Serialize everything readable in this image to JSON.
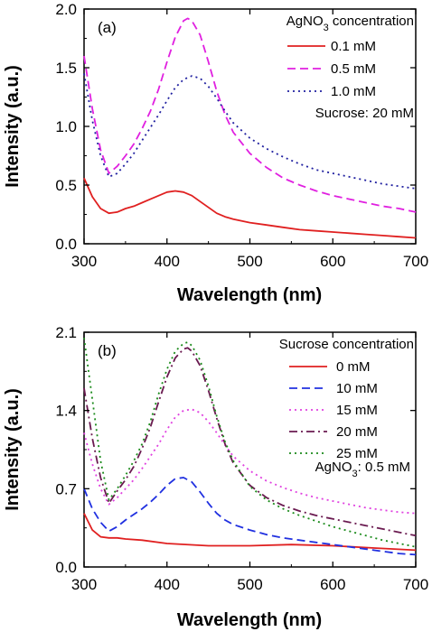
{
  "colors": {
    "red": "#e02020",
    "magenta": "#e020e0",
    "navy": "#2020a0",
    "blue": "#2030e0",
    "purple": "#6a1a50",
    "green": "#1a8a1a",
    "axis": "#000000"
  },
  "chart_data": [
    {
      "type": "line",
      "panel_label": "(a)",
      "xlabel": "Wavelength (nm)",
      "ylabel": "Intensity (a.u.)",
      "xlim": [
        300,
        700
      ],
      "ylim": [
        0,
        2.0
      ],
      "xticks": [
        "300",
        "400",
        "500",
        "600",
        "700"
      ],
      "yticks": [
        "0.0",
        "0.5",
        "1.0",
        "1.5",
        "2.0"
      ],
      "legend_title_main": "AgNO",
      "legend_title_sub": "3",
      "legend_title_rest": " concentration",
      "legend_note": "Sucrose: 20 mM",
      "legend_position": "top-right",
      "series": [
        {
          "name": "0.1 mM",
          "color": "#e02020",
          "dash": "solid",
          "x": [
            300,
            310,
            320,
            330,
            340,
            350,
            360,
            370,
            380,
            390,
            400,
            410,
            420,
            430,
            440,
            450,
            460,
            470,
            480,
            500,
            520,
            540,
            560,
            580,
            600,
            620,
            640,
            660,
            680,
            700
          ],
          "y": [
            0.56,
            0.4,
            0.3,
            0.26,
            0.27,
            0.3,
            0.32,
            0.35,
            0.38,
            0.41,
            0.44,
            0.45,
            0.44,
            0.41,
            0.36,
            0.31,
            0.26,
            0.23,
            0.21,
            0.18,
            0.16,
            0.14,
            0.12,
            0.11,
            0.1,
            0.09,
            0.08,
            0.07,
            0.06,
            0.05
          ]
        },
        {
          "name": "0.5 mM",
          "color": "#e020e0",
          "dash": "dash",
          "x": [
            300,
            310,
            320,
            330,
            340,
            350,
            360,
            370,
            380,
            390,
            400,
            410,
            420,
            425,
            430,
            440,
            450,
            460,
            470,
            480,
            500,
            520,
            540,
            560,
            580,
            600,
            620,
            640,
            660,
            680,
            700
          ],
          "y": [
            1.6,
            1.15,
            0.8,
            0.6,
            0.66,
            0.75,
            0.85,
            0.98,
            1.13,
            1.32,
            1.55,
            1.76,
            1.9,
            1.92,
            1.9,
            1.78,
            1.55,
            1.3,
            1.1,
            0.95,
            0.77,
            0.65,
            0.56,
            0.5,
            0.45,
            0.41,
            0.38,
            0.35,
            0.32,
            0.3,
            0.27
          ]
        },
        {
          "name": "1.0 mM",
          "color": "#2020a0",
          "dash": "dot",
          "x": [
            300,
            310,
            320,
            330,
            340,
            350,
            360,
            370,
            380,
            390,
            400,
            410,
            420,
            430,
            440,
            450,
            460,
            470,
            480,
            500,
            520,
            540,
            560,
            580,
            600,
            620,
            640,
            660,
            680,
            700
          ],
          "y": [
            1.45,
            1.05,
            0.75,
            0.57,
            0.6,
            0.68,
            0.77,
            0.88,
            0.99,
            1.1,
            1.22,
            1.33,
            1.4,
            1.43,
            1.41,
            1.34,
            1.24,
            1.13,
            1.03,
            0.9,
            0.81,
            0.74,
            0.68,
            0.63,
            0.6,
            0.57,
            0.54,
            0.51,
            0.49,
            0.47
          ]
        }
      ]
    },
    {
      "type": "line",
      "panel_label": "(b)",
      "xlabel": "Wavelength (nm)",
      "ylabel": "Intensity (a.u.)",
      "xlim": [
        300,
        700
      ],
      "ylim": [
        0,
        2.1
      ],
      "xticks": [
        "300",
        "400",
        "500",
        "600",
        "700"
      ],
      "yticks": [
        "0.0",
        "0.7",
        "1.4",
        "2.1"
      ],
      "legend_title": "Sucrose concentration",
      "legend_note_main": "AgNO",
      "legend_note_sub": "3",
      "legend_note_rest": ": 0.5 mM",
      "legend_position": "top-right",
      "series": [
        {
          "name": "0 mM",
          "color": "#e02020",
          "dash": "solid",
          "x": [
            300,
            310,
            320,
            330,
            340,
            350,
            370,
            400,
            450,
            500,
            550,
            600,
            650,
            700
          ],
          "y": [
            0.48,
            0.33,
            0.27,
            0.26,
            0.26,
            0.25,
            0.24,
            0.21,
            0.19,
            0.19,
            0.2,
            0.19,
            0.17,
            0.15
          ]
        },
        {
          "name": "10 mM",
          "color": "#2030e0",
          "dash": "dash",
          "x": [
            300,
            310,
            320,
            330,
            340,
            350,
            360,
            370,
            380,
            390,
            400,
            410,
            420,
            430,
            440,
            450,
            460,
            470,
            480,
            500,
            520,
            540,
            560,
            580,
            600,
            620,
            640,
            660,
            680,
            700
          ],
          "y": [
            0.7,
            0.52,
            0.4,
            0.32,
            0.36,
            0.42,
            0.47,
            0.52,
            0.58,
            0.65,
            0.73,
            0.79,
            0.8,
            0.76,
            0.67,
            0.57,
            0.48,
            0.42,
            0.38,
            0.33,
            0.29,
            0.26,
            0.24,
            0.22,
            0.2,
            0.18,
            0.16,
            0.14,
            0.12,
            0.11
          ]
        },
        {
          "name": "15 mM",
          "color": "#e040e0",
          "dash": "dot",
          "x": [
            300,
            310,
            320,
            330,
            340,
            350,
            360,
            370,
            380,
            390,
            400,
            410,
            420,
            430,
            440,
            450,
            460,
            470,
            480,
            500,
            520,
            540,
            560,
            580,
            600,
            620,
            640,
            660,
            680,
            700
          ],
          "y": [
            1.2,
            0.92,
            0.7,
            0.56,
            0.62,
            0.7,
            0.78,
            0.88,
            0.99,
            1.1,
            1.23,
            1.34,
            1.4,
            1.41,
            1.38,
            1.3,
            1.2,
            1.09,
            0.99,
            0.86,
            0.77,
            0.71,
            0.66,
            0.62,
            0.59,
            0.56,
            0.53,
            0.51,
            0.49,
            0.48
          ]
        },
        {
          "name": "20 mM",
          "color": "#6a1a50",
          "dash": "dashdot",
          "x": [
            300,
            310,
            320,
            330,
            340,
            350,
            360,
            370,
            380,
            390,
            400,
            410,
            420,
            425,
            430,
            440,
            450,
            460,
            470,
            480,
            500,
            520,
            540,
            560,
            580,
            600,
            620,
            640,
            660,
            680,
            700
          ],
          "y": [
            1.6,
            1.15,
            0.8,
            0.57,
            0.68,
            0.78,
            0.9,
            1.06,
            1.25,
            1.48,
            1.7,
            1.87,
            1.95,
            1.96,
            1.93,
            1.8,
            1.58,
            1.33,
            1.1,
            0.93,
            0.73,
            0.62,
            0.55,
            0.5,
            0.46,
            0.43,
            0.4,
            0.37,
            0.34,
            0.31,
            0.28
          ]
        },
        {
          "name": "25 mM",
          "color": "#1a8a1a",
          "dash": "dot",
          "x": [
            300,
            310,
            320,
            330,
            340,
            350,
            360,
            370,
            380,
            390,
            400,
            410,
            420,
            425,
            430,
            440,
            450,
            460,
            470,
            480,
            500,
            520,
            540,
            560,
            580,
            600,
            620,
            640,
            660,
            680,
            700
          ],
          "y": [
            2.05,
            1.5,
            0.95,
            0.6,
            0.7,
            0.82,
            0.95,
            1.1,
            1.3,
            1.55,
            1.77,
            1.93,
            2.0,
            2.01,
            1.98,
            1.85,
            1.62,
            1.35,
            1.12,
            0.95,
            0.72,
            0.6,
            0.52,
            0.46,
            0.41,
            0.36,
            0.32,
            0.28,
            0.24,
            0.21,
            0.18
          ]
        }
      ]
    }
  ]
}
